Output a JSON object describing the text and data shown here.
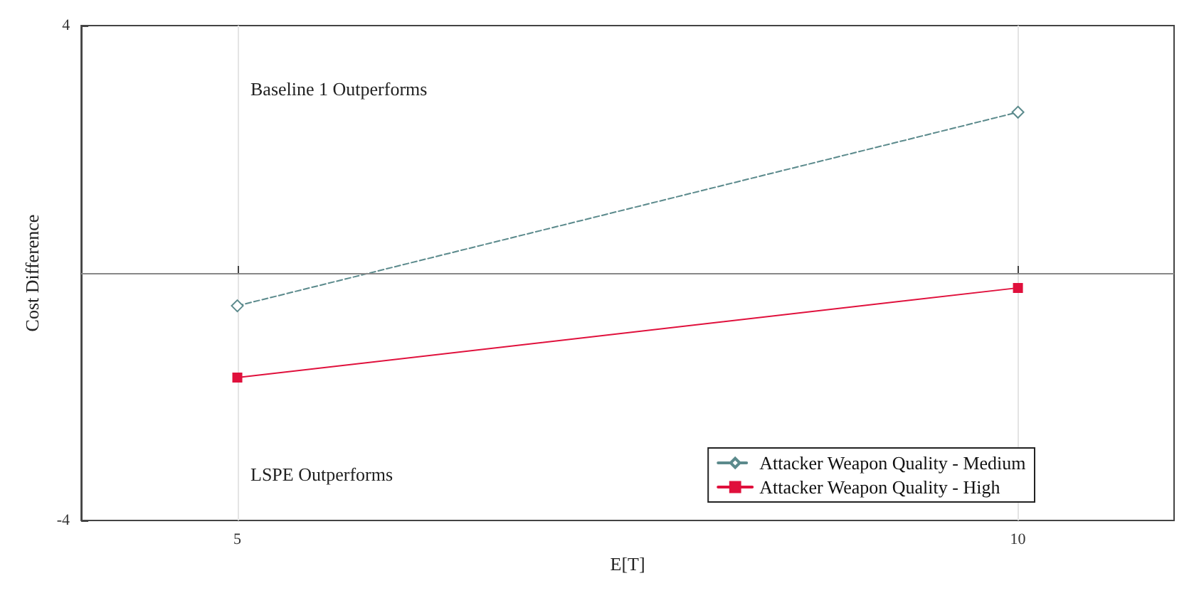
{
  "chart_data": {
    "type": "line",
    "xlabel": "E[T]",
    "ylabel": "Cost Difference",
    "annotations": [
      "Baseline 1 Outperforms",
      "LSPE Outperforms"
    ],
    "x": [
      5,
      10
    ],
    "series": [
      {
        "name": "Attacker Weapon Quality - Medium",
        "color": "#5b8a8c",
        "values": [
          -0.53,
          2.6
        ],
        "marker": "diamond",
        "line_style": "dashed"
      },
      {
        "name": "Attacker Weapon Quality - High",
        "color": "#e0103c",
        "values": [
          -1.69,
          -0.24
        ],
        "marker": "square",
        "line_style": "solid"
      }
    ],
    "xlim": [
      4,
      11
    ],
    "xticks": [
      5,
      10
    ],
    "ylim": [
      -4,
      4
    ],
    "yticks": [
      -4,
      4
    ],
    "ref_lines": [
      {
        "axis": "y",
        "value": 0,
        "label": null,
        "color": "#888888"
      }
    ],
    "grid": "x",
    "legend": "bottom right"
  }
}
